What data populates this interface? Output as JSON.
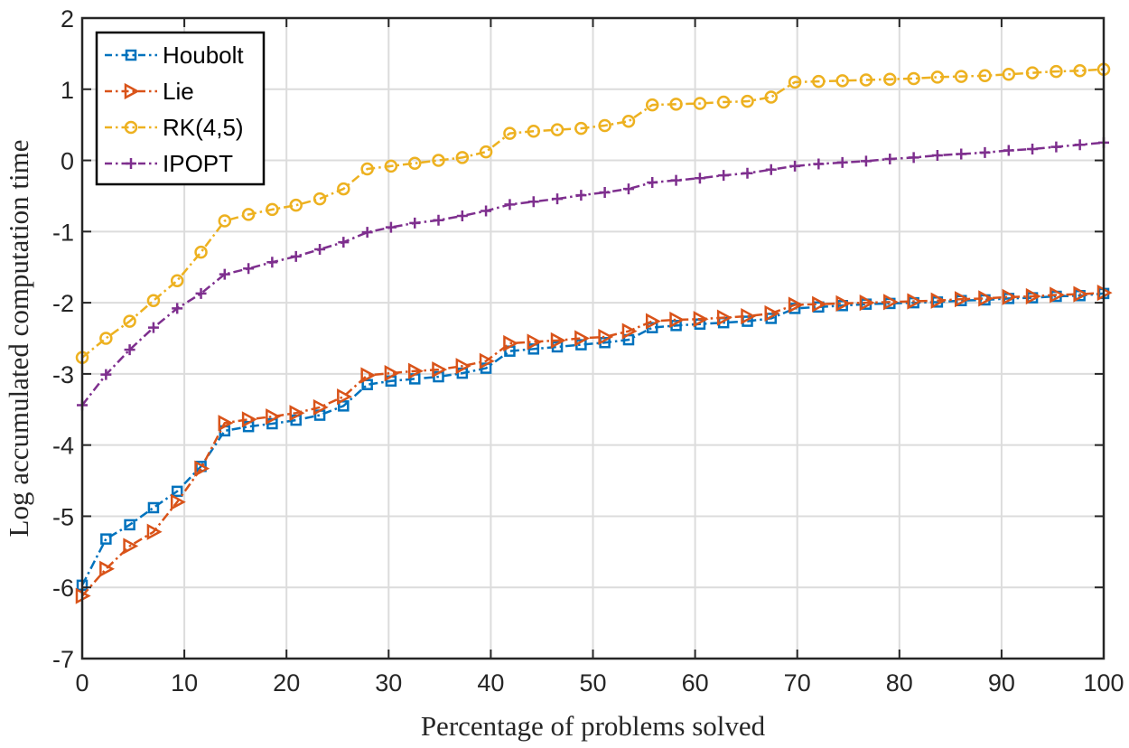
{
  "chart_data": {
    "type": "line",
    "xlabel": "Percentage of problems solved",
    "ylabel": "Log accumulated computation time",
    "xlim": [
      0,
      100
    ],
    "ylim": [
      -7,
      2
    ],
    "xticks": [
      0,
      10,
      20,
      30,
      40,
      50,
      60,
      70,
      80,
      90,
      100
    ],
    "yticks": [
      -7,
      -6,
      -5,
      -4,
      -3,
      -2,
      -1,
      0,
      1,
      2
    ],
    "grid": true,
    "legend_position": "top-left",
    "x": [
      0,
      2.33,
      4.65,
      6.98,
      9.3,
      11.63,
      13.95,
      16.28,
      18.6,
      20.93,
      23.26,
      25.58,
      27.91,
      30.23,
      32.56,
      34.88,
      37.21,
      39.53,
      41.86,
      44.19,
      46.51,
      48.84,
      51.16,
      53.49,
      55.81,
      58.14,
      60.47,
      62.79,
      65.12,
      67.44,
      69.77,
      72.09,
      74.42,
      76.74,
      79.07,
      81.4,
      83.72,
      86.05,
      88.37,
      90.7,
      93.02,
      95.35,
      97.67,
      100
    ],
    "series": [
      {
        "name": "Houbolt",
        "color": "#0072BD",
        "marker": "square",
        "values": [
          -5.97,
          -5.32,
          -5.12,
          -4.88,
          -4.65,
          -4.3,
          -3.8,
          -3.74,
          -3.7,
          -3.65,
          -3.58,
          -3.45,
          -3.15,
          -3.1,
          -3.07,
          -3.04,
          -2.99,
          -2.92,
          -2.68,
          -2.65,
          -2.62,
          -2.59,
          -2.56,
          -2.52,
          -2.35,
          -2.32,
          -2.3,
          -2.28,
          -2.26,
          -2.22,
          -2.08,
          -2.06,
          -2.04,
          -2.02,
          -2.01,
          -2.0,
          -1.99,
          -1.97,
          -1.96,
          -1.94,
          -1.93,
          -1.91,
          -1.9,
          -1.87
        ]
      },
      {
        "name": "Lie",
        "color": "#D95319",
        "marker": "triangle-right",
        "values": [
          -6.12,
          -5.74,
          -5.42,
          -5.22,
          -4.8,
          -4.33,
          -3.69,
          -3.64,
          -3.6,
          -3.55,
          -3.47,
          -3.32,
          -3.02,
          -2.99,
          -2.96,
          -2.94,
          -2.89,
          -2.82,
          -2.57,
          -2.55,
          -2.53,
          -2.5,
          -2.48,
          -2.4,
          -2.26,
          -2.24,
          -2.23,
          -2.21,
          -2.19,
          -2.15,
          -2.03,
          -2.02,
          -2.01,
          -2.0,
          -1.99,
          -1.98,
          -1.97,
          -1.95,
          -1.94,
          -1.92,
          -1.91,
          -1.89,
          -1.88,
          -1.86
        ]
      },
      {
        "name": "RK(4,5)",
        "color": "#EDB120",
        "marker": "circle",
        "values": [
          -2.77,
          -2.5,
          -2.26,
          -1.97,
          -1.69,
          -1.29,
          -0.85,
          -0.76,
          -0.69,
          -0.63,
          -0.54,
          -0.4,
          -0.12,
          -0.08,
          -0.04,
          0.0,
          0.04,
          0.12,
          0.38,
          0.41,
          0.43,
          0.45,
          0.49,
          0.55,
          0.78,
          0.79,
          0.8,
          0.82,
          0.83,
          0.89,
          1.1,
          1.11,
          1.12,
          1.13,
          1.14,
          1.15,
          1.17,
          1.18,
          1.19,
          1.21,
          1.23,
          1.25,
          1.26,
          1.28
        ]
      },
      {
        "name": "IPOPT",
        "color": "#7E2F8E",
        "marker": "plus",
        "values": [
          -3.44,
          -3.01,
          -2.66,
          -2.35,
          -2.08,
          -1.87,
          -1.6,
          -1.52,
          -1.43,
          -1.35,
          -1.25,
          -1.15,
          -1.01,
          -0.94,
          -0.88,
          -0.84,
          -0.78,
          -0.71,
          -0.62,
          -0.58,
          -0.54,
          -0.49,
          -0.45,
          -0.4,
          -0.31,
          -0.28,
          -0.25,
          -0.21,
          -0.18,
          -0.13,
          -0.08,
          -0.05,
          -0.03,
          -0.01,
          0.02,
          0.04,
          0.07,
          0.09,
          0.11,
          0.14,
          0.16,
          0.19,
          0.22,
          0.25
        ]
      }
    ]
  }
}
